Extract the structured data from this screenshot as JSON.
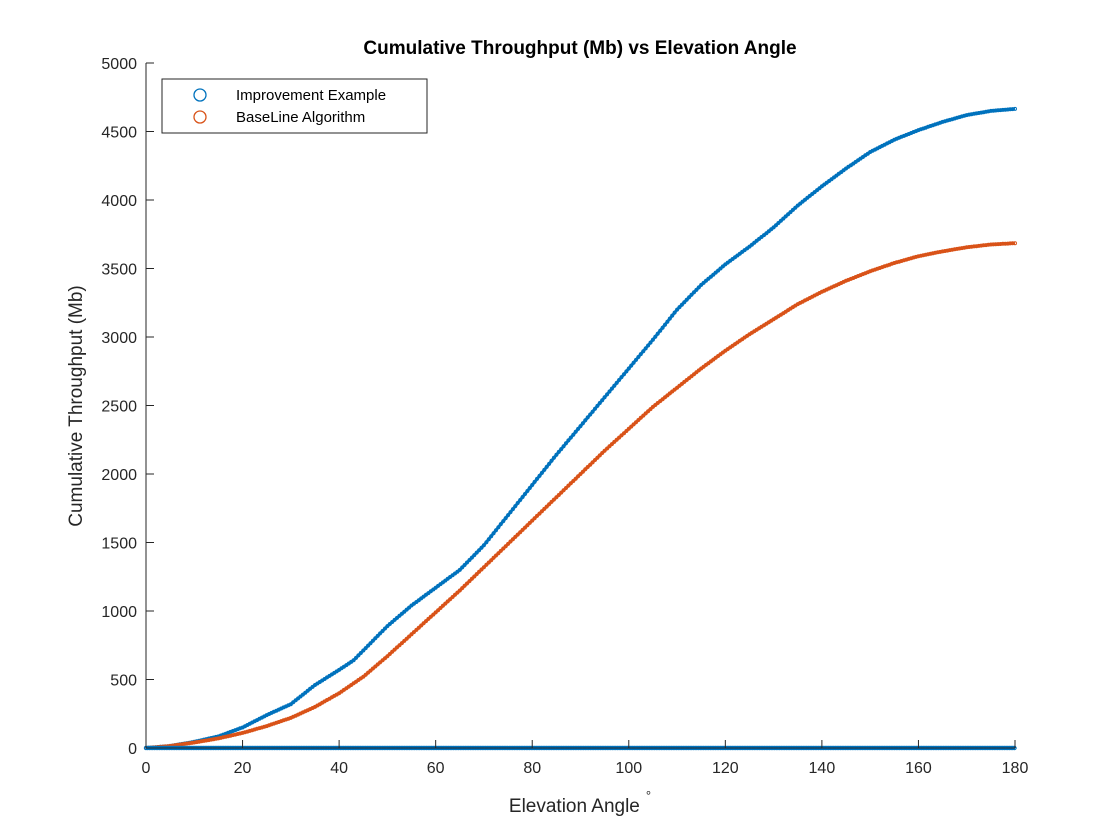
{
  "chart_data": {
    "type": "line",
    "title": "Cumulative Throughput (Mb) vs Elevation Angle",
    "xlabel": "Elevation Angle",
    "xlabel_suffix": "°",
    "ylabel": "Cumulative Throughput (Mb)",
    "xlim": [
      0,
      180
    ],
    "ylim": [
      0,
      5000
    ],
    "xticks": [
      0,
      20,
      40,
      60,
      80,
      100,
      120,
      140,
      160,
      180
    ],
    "yticks": [
      0,
      500,
      1000,
      1500,
      2000,
      2500,
      3000,
      3500,
      4000,
      4500,
      5000
    ],
    "grid": false,
    "legend_position": "top-left",
    "series": [
      {
        "name": "Improvement Example",
        "color": "#0072BD",
        "marker": "circle",
        "x": [
          0,
          5,
          10,
          15,
          20,
          25,
          30,
          35,
          40,
          43,
          50,
          55,
          60,
          65,
          70,
          75,
          80,
          85,
          90,
          95,
          100,
          105,
          110,
          115,
          120,
          125,
          130,
          135,
          140,
          145,
          150,
          155,
          160,
          165,
          170,
          175,
          180
        ],
        "values": [
          0,
          15,
          45,
          85,
          150,
          240,
          320,
          460,
          570,
          640,
          890,
          1040,
          1170,
          1300,
          1480,
          1700,
          1920,
          2140,
          2350,
          2560,
          2770,
          2980,
          3200,
          3380,
          3530,
          3660,
          3800,
          3960,
          4100,
          4230,
          4350,
          4440,
          4510,
          4570,
          4620,
          4650,
          4665
        ]
      },
      {
        "name": "BaseLine Algorithm",
        "color": "#D95319",
        "marker": "circle",
        "x": [
          0,
          5,
          10,
          15,
          20,
          25,
          30,
          35,
          40,
          45,
          50,
          55,
          60,
          65,
          70,
          75,
          80,
          85,
          90,
          95,
          100,
          105,
          110,
          115,
          120,
          125,
          130,
          135,
          140,
          145,
          150,
          155,
          160,
          165,
          170,
          175,
          180
        ],
        "values": [
          0,
          15,
          40,
          70,
          110,
          160,
          220,
          300,
          400,
          520,
          670,
          830,
          990,
          1150,
          1320,
          1490,
          1660,
          1830,
          2000,
          2170,
          2330,
          2490,
          2630,
          2770,
          2900,
          3020,
          3130,
          3240,
          3330,
          3410,
          3480,
          3540,
          3590,
          3625,
          3655,
          3675,
          3685
        ]
      },
      {
        "name": "",
        "color": "#0072BD",
        "marker": "circle",
        "style": "scatter-baseline",
        "x": [
          0,
          180
        ],
        "values": [
          0,
          0
        ]
      }
    ]
  }
}
